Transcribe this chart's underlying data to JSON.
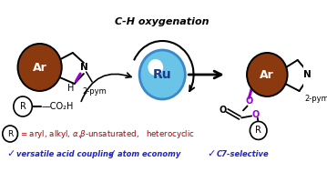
{
  "title_text": "C-H oxygenation",
  "ru_label": "Ru",
  "ar_color": "#8B3A10",
  "substrate_label": "Ar",
  "product_label": "Ar",
  "n_label": "N",
  "h_label": "H",
  "pym_label": "2-pym",
  "r_label": "R",
  "co2h_text": "CO₂H",
  "checkmarks": [
    "versatile acid coupling",
    "atom economy",
    "C7-selective"
  ],
  "checkmark_color": "#2222cc",
  "bottom_text_color": "#aa0000",
  "bg_color": "white",
  "black": "#000000",
  "purple": "#9900cc",
  "blue_dark": "#1a3a8a",
  "ru_blue": "#6ac4e8",
  "ru_edge": "#3a88c8"
}
